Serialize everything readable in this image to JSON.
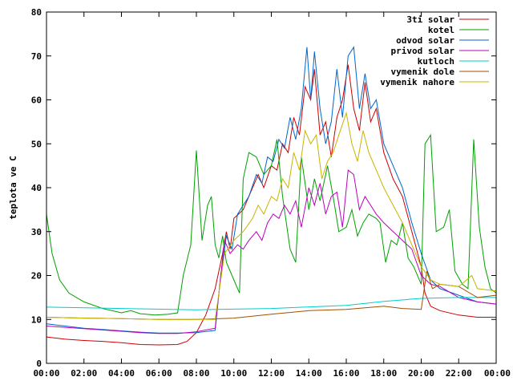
{
  "chart_data": {
    "type": "line",
    "title": "",
    "xlabel": "",
    "ylabel": "teplota ve C",
    "xlim": [
      0,
      24
    ],
    "ylim": [
      0,
      80
    ],
    "grid": false,
    "legend_position": "top-right",
    "x_ticks": [
      "00:00",
      "02:00",
      "04:00",
      "06:00",
      "08:00",
      "10:00",
      "12:00",
      "14:00",
      "16:00",
      "18:00",
      "20:00",
      "22:00",
      "00:00"
    ],
    "y_ticks": [
      "0",
      "10",
      "20",
      "30",
      "40",
      "50",
      "60",
      "70",
      "80"
    ],
    "series": [
      {
        "name": "3ti solar",
        "color": "#cc0000",
        "points": [
          [
            0,
            6
          ],
          [
            1,
            5.5
          ],
          [
            2,
            5.2
          ],
          [
            3,
            5
          ],
          [
            4,
            4.7
          ],
          [
            5,
            4.3
          ],
          [
            6,
            4.2
          ],
          [
            7,
            4.3
          ],
          [
            7.5,
            5
          ],
          [
            8,
            7
          ],
          [
            8.5,
            11
          ],
          [
            9,
            17
          ],
          [
            9.4,
            25
          ],
          [
            9.6,
            30
          ],
          [
            9.8,
            26
          ],
          [
            10,
            33
          ],
          [
            10.5,
            35
          ],
          [
            11,
            40
          ],
          [
            11.3,
            43
          ],
          [
            11.6,
            40
          ],
          [
            12,
            45
          ],
          [
            12.3,
            44
          ],
          [
            12.6,
            50
          ],
          [
            12.9,
            48
          ],
          [
            13.2,
            56
          ],
          [
            13.5,
            52
          ],
          [
            13.8,
            63
          ],
          [
            14.1,
            60
          ],
          [
            14.3,
            67
          ],
          [
            14.6,
            52
          ],
          [
            14.9,
            55
          ],
          [
            15.2,
            47
          ],
          [
            15.5,
            56
          ],
          [
            15.8,
            60
          ],
          [
            16.1,
            68
          ],
          [
            16.4,
            58
          ],
          [
            16.7,
            53
          ],
          [
            17,
            64
          ],
          [
            17.3,
            55
          ],
          [
            17.6,
            58
          ],
          [
            18,
            48
          ],
          [
            18.5,
            42
          ],
          [
            19,
            38
          ],
          [
            19.5,
            30
          ],
          [
            20,
            22
          ],
          [
            20.2,
            16
          ],
          [
            20.5,
            13
          ],
          [
            21,
            12
          ],
          [
            22,
            11
          ],
          [
            23,
            10.5
          ],
          [
            24,
            10.5
          ]
        ]
      },
      {
        "name": "kotel",
        "color": "#00a000",
        "points": [
          [
            0,
            34
          ],
          [
            0.3,
            25
          ],
          [
            0.7,
            19
          ],
          [
            1.2,
            16
          ],
          [
            2,
            14
          ],
          [
            3,
            12.5
          ],
          [
            4,
            11.5
          ],
          [
            4.5,
            12
          ],
          [
            5,
            11.3
          ],
          [
            5.8,
            11
          ],
          [
            6.5,
            11.2
          ],
          [
            7,
            11.5
          ],
          [
            7.3,
            20
          ],
          [
            7.7,
            27
          ],
          [
            8,
            48.5
          ],
          [
            8.3,
            28
          ],
          [
            8.6,
            36
          ],
          [
            8.8,
            38
          ],
          [
            9,
            27
          ],
          [
            9.2,
            24
          ],
          [
            9.4,
            29
          ],
          [
            9.6,
            23
          ],
          [
            9.8,
            21
          ],
          [
            10,
            19
          ],
          [
            10.3,
            16
          ],
          [
            10.5,
            42
          ],
          [
            10.8,
            48
          ],
          [
            11.2,
            47
          ],
          [
            11.6,
            43
          ],
          [
            12,
            45
          ],
          [
            12.3,
            51
          ],
          [
            12.6,
            38
          ],
          [
            13,
            26
          ],
          [
            13.3,
            23
          ],
          [
            13.6,
            47
          ],
          [
            14,
            35
          ],
          [
            14.3,
            42
          ],
          [
            14.6,
            37
          ],
          [
            15,
            45
          ],
          [
            15.3,
            38
          ],
          [
            15.6,
            30
          ],
          [
            16,
            31
          ],
          [
            16.3,
            35
          ],
          [
            16.6,
            29
          ],
          [
            16.9,
            32
          ],
          [
            17.2,
            34
          ],
          [
            17.6,
            33
          ],
          [
            17.8,
            32
          ],
          [
            18.1,
            23
          ],
          [
            18.4,
            28
          ],
          [
            18.7,
            27
          ],
          [
            19,
            32
          ],
          [
            19.3,
            24
          ],
          [
            19.6,
            22
          ],
          [
            20,
            18
          ],
          [
            20.2,
            50
          ],
          [
            20.5,
            52
          ],
          [
            20.8,
            30
          ],
          [
            21.2,
            31
          ],
          [
            21.5,
            35
          ],
          [
            21.8,
            21
          ],
          [
            22.2,
            18
          ],
          [
            22.5,
            17
          ],
          [
            22.8,
            51
          ],
          [
            23.1,
            31
          ],
          [
            23.4,
            22
          ],
          [
            23.7,
            17
          ],
          [
            24,
            16
          ]
        ]
      },
      {
        "name": "odvod solar",
        "color": "#0066cc",
        "points": [
          [
            0,
            9
          ],
          [
            1,
            8.5
          ],
          [
            2,
            8
          ],
          [
            3,
            7.7
          ],
          [
            4,
            7.4
          ],
          [
            5,
            7.1
          ],
          [
            6,
            6.9
          ],
          [
            7,
            6.9
          ],
          [
            8,
            7
          ],
          [
            9,
            7.5
          ],
          [
            9.3,
            20
          ],
          [
            9.6,
            29
          ],
          [
            9.9,
            26
          ],
          [
            10.2,
            34
          ],
          [
            10.5,
            36
          ],
          [
            10.8,
            38
          ],
          [
            11.2,
            43
          ],
          [
            11.5,
            41
          ],
          [
            11.8,
            47
          ],
          [
            12.1,
            46
          ],
          [
            12.4,
            51
          ],
          [
            12.7,
            49
          ],
          [
            13,
            56
          ],
          [
            13.3,
            51
          ],
          [
            13.6,
            58
          ],
          [
            13.9,
            72
          ],
          [
            14.1,
            60
          ],
          [
            14.3,
            71
          ],
          [
            14.6,
            58
          ],
          [
            14.9,
            50
          ],
          [
            15.2,
            55
          ],
          [
            15.5,
            67
          ],
          [
            15.8,
            56
          ],
          [
            16.1,
            70
          ],
          [
            16.4,
            72
          ],
          [
            16.7,
            58
          ],
          [
            17,
            66
          ],
          [
            17.3,
            58
          ],
          [
            17.6,
            60
          ],
          [
            18,
            50
          ],
          [
            18.5,
            45
          ],
          [
            19,
            40
          ],
          [
            19.5,
            32
          ],
          [
            20,
            25
          ],
          [
            20.5,
            19
          ],
          [
            21,
            17
          ],
          [
            22,
            15.5
          ],
          [
            23,
            14
          ],
          [
            24,
            13.5
          ]
        ]
      },
      {
        "name": "privod solar",
        "color": "#bb00bb",
        "points": [
          [
            0,
            8.5
          ],
          [
            1,
            8.2
          ],
          [
            2,
            7.9
          ],
          [
            3,
            7.6
          ],
          [
            4,
            7.3
          ],
          [
            5,
            7
          ],
          [
            6,
            6.8
          ],
          [
            7,
            6.8
          ],
          [
            8,
            7.2
          ],
          [
            9,
            8
          ],
          [
            9.5,
            28
          ],
          [
            9.8,
            25
          ],
          [
            10.2,
            27
          ],
          [
            10.5,
            26
          ],
          [
            10.8,
            28
          ],
          [
            11.2,
            30
          ],
          [
            11.5,
            28
          ],
          [
            11.8,
            32
          ],
          [
            12.1,
            34
          ],
          [
            12.4,
            33
          ],
          [
            12.7,
            36
          ],
          [
            13,
            34
          ],
          [
            13.3,
            37
          ],
          [
            13.6,
            31
          ],
          [
            14,
            40
          ],
          [
            14.3,
            36
          ],
          [
            14.6,
            41
          ],
          [
            14.9,
            34
          ],
          [
            15.2,
            38
          ],
          [
            15.5,
            39
          ],
          [
            15.8,
            31
          ],
          [
            16.1,
            44
          ],
          [
            16.4,
            43
          ],
          [
            16.7,
            35
          ],
          [
            17,
            38
          ],
          [
            17.3,
            36
          ],
          [
            17.6,
            34
          ],
          [
            18,
            32
          ],
          [
            18.5,
            30
          ],
          [
            19,
            28
          ],
          [
            19.5,
            26
          ],
          [
            20,
            20
          ],
          [
            20.5,
            18
          ],
          [
            21,
            17.5
          ],
          [
            22,
            15
          ],
          [
            23,
            14
          ],
          [
            24,
            13.5
          ]
        ]
      },
      {
        "name": "kutloch",
        "color": "#00cccc",
        "points": [
          [
            0,
            12.8
          ],
          [
            4,
            12.5
          ],
          [
            8,
            12.2
          ],
          [
            12,
            12.5
          ],
          [
            16,
            13.2
          ],
          [
            18,
            14.1
          ],
          [
            20,
            14.8
          ],
          [
            22,
            15
          ],
          [
            24,
            15
          ]
        ]
      },
      {
        "name": "vymenik dole",
        "color": "#a05000",
        "points": [
          [
            0,
            10.5
          ],
          [
            2,
            10.3
          ],
          [
            4,
            10.2
          ],
          [
            6,
            10
          ],
          [
            8,
            10
          ],
          [
            10,
            10.3
          ],
          [
            12,
            11.2
          ],
          [
            14,
            12
          ],
          [
            16,
            12.3
          ],
          [
            18,
            13
          ],
          [
            19,
            12.5
          ],
          [
            20,
            12.3
          ],
          [
            20.3,
            21
          ],
          [
            20.6,
            17
          ],
          [
            21,
            18
          ],
          [
            22,
            17.5
          ],
          [
            23,
            15
          ],
          [
            24,
            15.5
          ]
        ]
      },
      {
        "name": "vymenik nahore",
        "color": "#c8b400",
        "points": [
          [
            0,
            10.5
          ],
          [
            2,
            10.3
          ],
          [
            4,
            10.2
          ],
          [
            6,
            10
          ],
          [
            8,
            10
          ],
          [
            9,
            10
          ],
          [
            9.5,
            25
          ],
          [
            10,
            28
          ],
          [
            10.5,
            30
          ],
          [
            11,
            33
          ],
          [
            11.3,
            36
          ],
          [
            11.6,
            34
          ],
          [
            12,
            38
          ],
          [
            12.3,
            37
          ],
          [
            12.6,
            42
          ],
          [
            12.9,
            40
          ],
          [
            13.2,
            48
          ],
          [
            13.5,
            44
          ],
          [
            13.8,
            53
          ],
          [
            14.1,
            50
          ],
          [
            14.4,
            52
          ],
          [
            14.7,
            42
          ],
          [
            15,
            46
          ],
          [
            15.3,
            48
          ],
          [
            15.6,
            52
          ],
          [
            16,
            57
          ],
          [
            16.3,
            50
          ],
          [
            16.6,
            46
          ],
          [
            16.9,
            53
          ],
          [
            17.2,
            48
          ],
          [
            17.5,
            45
          ],
          [
            18,
            40
          ],
          [
            18.5,
            36
          ],
          [
            19,
            32
          ],
          [
            19.5,
            27
          ],
          [
            20,
            22
          ],
          [
            20.5,
            19
          ],
          [
            21,
            18
          ],
          [
            22,
            17.5
          ],
          [
            22.7,
            20
          ],
          [
            23,
            17
          ],
          [
            24,
            16.5
          ]
        ]
      }
    ]
  }
}
